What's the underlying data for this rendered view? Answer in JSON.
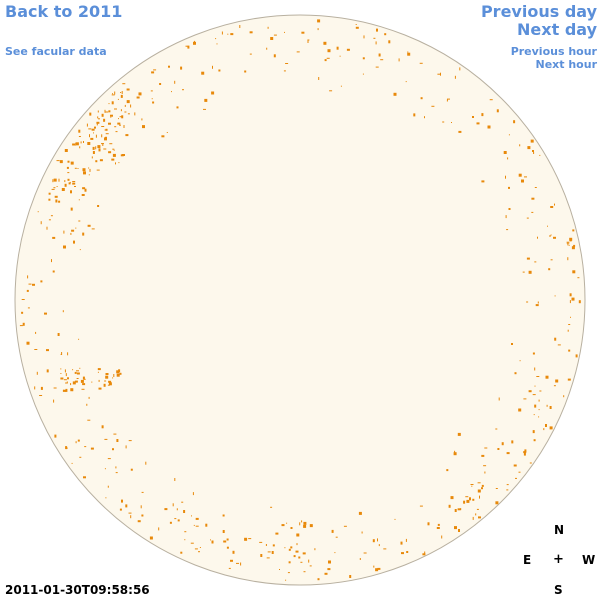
{
  "nav": {
    "back_year": "Back to 2011",
    "facular": "See facular data",
    "prev_day": "Previous day",
    "next_day": "Next day",
    "prev_hour": "Previous hour",
    "next_hour": "Next hour"
  },
  "compass": {
    "north": "N",
    "east": "E",
    "center": "+",
    "west": "W",
    "south": "S"
  },
  "timestamp": "2011-01-30T09:58:56",
  "colors": {
    "disk_fill": "#fdf8ec",
    "disk_stroke": "#b8b0a0",
    "facula": "#e8890a",
    "link": "#5b8fd9"
  }
}
